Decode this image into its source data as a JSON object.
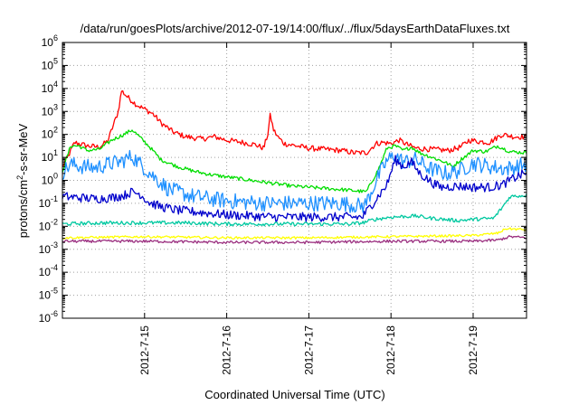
{
  "chart_data": {
    "type": "line",
    "title": "/data/run/goesPlots/archive/2012-07-19/14:00/flux/../flux/5daysEarthDataFluxes.txt",
    "xlabel": "Coordinated Universal Time (UTC)",
    "ylabel_parts": [
      "protons/cm",
      "2",
      "-s-sr-MeV"
    ],
    "y_scale": "log",
    "ylim_exp": [
      -6,
      6
    ],
    "y_tick_base": "10",
    "y_ticks": [
      {
        "exp": -6,
        "label": "-6"
      },
      {
        "exp": -5,
        "label": "-5"
      },
      {
        "exp": -4,
        "label": "-4"
      },
      {
        "exp": -3,
        "label": "-3"
      },
      {
        "exp": -2,
        "label": "-2"
      },
      {
        "exp": -1,
        "label": "-1"
      },
      {
        "exp": 0,
        "label": "0"
      },
      {
        "exp": 1,
        "label": "1"
      },
      {
        "exp": 2,
        "label": "2"
      },
      {
        "exp": 3,
        "label": "3"
      },
      {
        "exp": 4,
        "label": "4"
      },
      {
        "exp": 5,
        "label": "5"
      },
      {
        "exp": 6,
        "label": "6"
      }
    ],
    "xlim_days": [
      14.0,
      19.65
    ],
    "x_ticks": [
      {
        "day": 15,
        "label": "2012-7-15"
      },
      {
        "day": 16,
        "label": "2012-7-16"
      },
      {
        "day": 17,
        "label": "2012-7-17"
      },
      {
        "day": 18,
        "label": "2012-7-18"
      },
      {
        "day": 19,
        "label": "2012-7-19"
      }
    ],
    "grid": true,
    "series": [
      {
        "color": "#ff0000",
        "noise": 0.12,
        "points": [
          [
            14.0,
            0.6
          ],
          [
            14.05,
            0.9
          ],
          [
            14.15,
            1.65
          ],
          [
            14.3,
            1.5
          ],
          [
            14.45,
            1.45
          ],
          [
            14.55,
            1.7
          ],
          [
            14.62,
            2.4
          ],
          [
            14.68,
            3.0
          ],
          [
            14.72,
            3.9
          ],
          [
            14.8,
            3.6
          ],
          [
            14.9,
            3.3
          ],
          [
            15.0,
            3.1
          ],
          [
            15.1,
            2.9
          ],
          [
            15.2,
            2.5
          ],
          [
            15.35,
            2.1
          ],
          [
            15.5,
            1.9
          ],
          [
            15.7,
            1.8
          ],
          [
            15.85,
            1.9
          ],
          [
            16.0,
            1.75
          ],
          [
            16.2,
            1.65
          ],
          [
            16.35,
            1.55
          ],
          [
            16.45,
            1.4
          ],
          [
            16.5,
            2.0
          ],
          [
            16.53,
            2.85
          ],
          [
            16.57,
            2.2
          ],
          [
            16.62,
            1.9
          ],
          [
            16.7,
            1.6
          ],
          [
            16.85,
            1.5
          ],
          [
            17.0,
            1.4
          ],
          [
            17.2,
            1.35
          ],
          [
            17.4,
            1.3
          ],
          [
            17.55,
            1.2
          ],
          [
            17.7,
            1.2
          ],
          [
            17.82,
            1.6
          ],
          [
            17.9,
            1.65
          ],
          [
            18.0,
            1.6
          ],
          [
            18.1,
            1.75
          ],
          [
            18.2,
            1.55
          ],
          [
            18.3,
            1.4
          ],
          [
            18.5,
            1.35
          ],
          [
            18.7,
            1.3
          ],
          [
            18.85,
            1.45
          ],
          [
            18.95,
            1.75
          ],
          [
            19.05,
            1.7
          ],
          [
            19.2,
            1.65
          ],
          [
            19.35,
            2.0
          ],
          [
            19.5,
            1.9
          ],
          [
            19.65,
            1.9
          ]
        ]
      },
      {
        "color": "#00dd00",
        "noise": 0.08,
        "points": [
          [
            14.0,
            0.4
          ],
          [
            14.1,
            1.5
          ],
          [
            14.2,
            1.5
          ],
          [
            14.3,
            1.3
          ],
          [
            14.45,
            1.35
          ],
          [
            14.6,
            1.75
          ],
          [
            14.75,
            2.0
          ],
          [
            14.85,
            2.2
          ],
          [
            14.95,
            1.85
          ],
          [
            15.05,
            1.5
          ],
          [
            15.2,
            0.9
          ],
          [
            15.4,
            0.6
          ],
          [
            15.6,
            0.4
          ],
          [
            15.8,
            0.25
          ],
          [
            16.0,
            0.15
          ],
          [
            16.2,
            0.05
          ],
          [
            16.4,
            -0.05
          ],
          [
            16.6,
            -0.15
          ],
          [
            16.8,
            -0.25
          ],
          [
            17.0,
            -0.3
          ],
          [
            17.2,
            -0.35
          ],
          [
            17.4,
            -0.4
          ],
          [
            17.55,
            -0.45
          ],
          [
            17.7,
            -0.5
          ],
          [
            17.85,
            0.5
          ],
          [
            17.95,
            1.4
          ],
          [
            18.05,
            1.5
          ],
          [
            18.15,
            1.3
          ],
          [
            18.25,
            1.45
          ],
          [
            18.35,
            1.2
          ],
          [
            18.5,
            1.0
          ],
          [
            18.65,
            0.8
          ],
          [
            18.75,
            0.6
          ],
          [
            18.85,
            0.9
          ],
          [
            19.0,
            1.3
          ],
          [
            19.15,
            1.25
          ],
          [
            19.3,
            1.5
          ],
          [
            19.45,
            1.25
          ],
          [
            19.65,
            1.2
          ]
        ]
      },
      {
        "color": "#1e90ff",
        "noise": 0.35,
        "points": [
          [
            14.0,
            0.35
          ],
          [
            14.1,
            0.7
          ],
          [
            14.25,
            0.6
          ],
          [
            14.4,
            0.55
          ],
          [
            14.55,
            0.7
          ],
          [
            14.7,
            0.8
          ],
          [
            14.85,
            1.05
          ],
          [
            14.95,
            0.7
          ],
          [
            15.1,
            0.2
          ],
          [
            15.3,
            -0.4
          ],
          [
            15.6,
            -0.7
          ],
          [
            15.9,
            -0.85
          ],
          [
            16.2,
            -0.95
          ],
          [
            16.5,
            -1.0
          ],
          [
            16.8,
            -1.0
          ],
          [
            17.1,
            -1.0
          ],
          [
            17.4,
            -1.0
          ],
          [
            17.6,
            -1.1
          ],
          [
            17.68,
            -1.1
          ],
          [
            17.85,
            0.2
          ],
          [
            17.95,
            0.85
          ],
          [
            18.05,
            1.1
          ],
          [
            18.15,
            0.8
          ],
          [
            18.3,
            0.9
          ],
          [
            18.45,
            0.55
          ],
          [
            18.6,
            0.35
          ],
          [
            18.7,
            0.3
          ],
          [
            18.85,
            0.45
          ],
          [
            19.0,
            0.75
          ],
          [
            19.2,
            0.6
          ],
          [
            19.4,
            0.5
          ],
          [
            19.65,
            0.7
          ]
        ]
      },
      {
        "color": "#0000cc",
        "noise": 0.2,
        "points": [
          [
            14.0,
            -0.7
          ],
          [
            14.2,
            -0.75
          ],
          [
            14.4,
            -0.8
          ],
          [
            14.6,
            -0.75
          ],
          [
            14.75,
            -0.65
          ],
          [
            14.85,
            -0.5
          ],
          [
            14.95,
            -0.6
          ],
          [
            15.05,
            -0.95
          ],
          [
            15.2,
            -1.15
          ],
          [
            15.4,
            -1.3
          ],
          [
            15.7,
            -1.4
          ],
          [
            16.0,
            -1.5
          ],
          [
            16.3,
            -1.55
          ],
          [
            16.6,
            -1.6
          ],
          [
            16.9,
            -1.6
          ],
          [
            17.2,
            -1.6
          ],
          [
            17.5,
            -1.6
          ],
          [
            17.65,
            -1.6
          ],
          [
            17.8,
            -0.9
          ],
          [
            17.95,
            -0.2
          ],
          [
            18.05,
            0.9
          ],
          [
            18.15,
            0.6
          ],
          [
            18.25,
            0.8
          ],
          [
            18.35,
            0.3
          ],
          [
            18.5,
            -0.1
          ],
          [
            18.6,
            -0.3
          ],
          [
            18.8,
            -0.25
          ],
          [
            19.0,
            -0.3
          ],
          [
            19.2,
            -0.3
          ],
          [
            19.35,
            -0.2
          ],
          [
            19.5,
            0.1
          ],
          [
            19.65,
            0.35
          ]
        ]
      },
      {
        "color": "#00c8a0",
        "noise": 0.08,
        "points": [
          [
            14.0,
            -1.9
          ],
          [
            14.5,
            -1.85
          ],
          [
            15.0,
            -1.85
          ],
          [
            15.5,
            -1.85
          ],
          [
            16.0,
            -1.9
          ],
          [
            16.5,
            -1.9
          ],
          [
            17.0,
            -1.9
          ],
          [
            17.5,
            -1.9
          ],
          [
            17.65,
            -1.85
          ],
          [
            17.8,
            -1.7
          ],
          [
            18.0,
            -1.6
          ],
          [
            18.3,
            -1.55
          ],
          [
            18.5,
            -1.65
          ],
          [
            18.8,
            -1.75
          ],
          [
            19.0,
            -1.7
          ],
          [
            19.25,
            -1.65
          ],
          [
            19.35,
            -1.2
          ],
          [
            19.45,
            -0.7
          ],
          [
            19.65,
            -0.65
          ]
        ]
      },
      {
        "color": "#ffff00",
        "noise": 0.05,
        "points": [
          [
            14.0,
            -2.5
          ],
          [
            15.0,
            -2.45
          ],
          [
            16.0,
            -2.5
          ],
          [
            17.0,
            -2.5
          ],
          [
            18.0,
            -2.45
          ],
          [
            19.0,
            -2.4
          ],
          [
            19.3,
            -2.3
          ],
          [
            19.4,
            -2.1
          ],
          [
            19.65,
            -2.15
          ]
        ]
      },
      {
        "color": "#9b3080",
        "noise": 0.06,
        "points": [
          [
            14.0,
            -2.65
          ],
          [
            15.0,
            -2.65
          ],
          [
            16.0,
            -2.7
          ],
          [
            17.0,
            -2.7
          ],
          [
            18.0,
            -2.65
          ],
          [
            19.0,
            -2.65
          ],
          [
            19.3,
            -2.6
          ],
          [
            19.45,
            -2.45
          ],
          [
            19.65,
            -2.5
          ]
        ]
      }
    ]
  }
}
